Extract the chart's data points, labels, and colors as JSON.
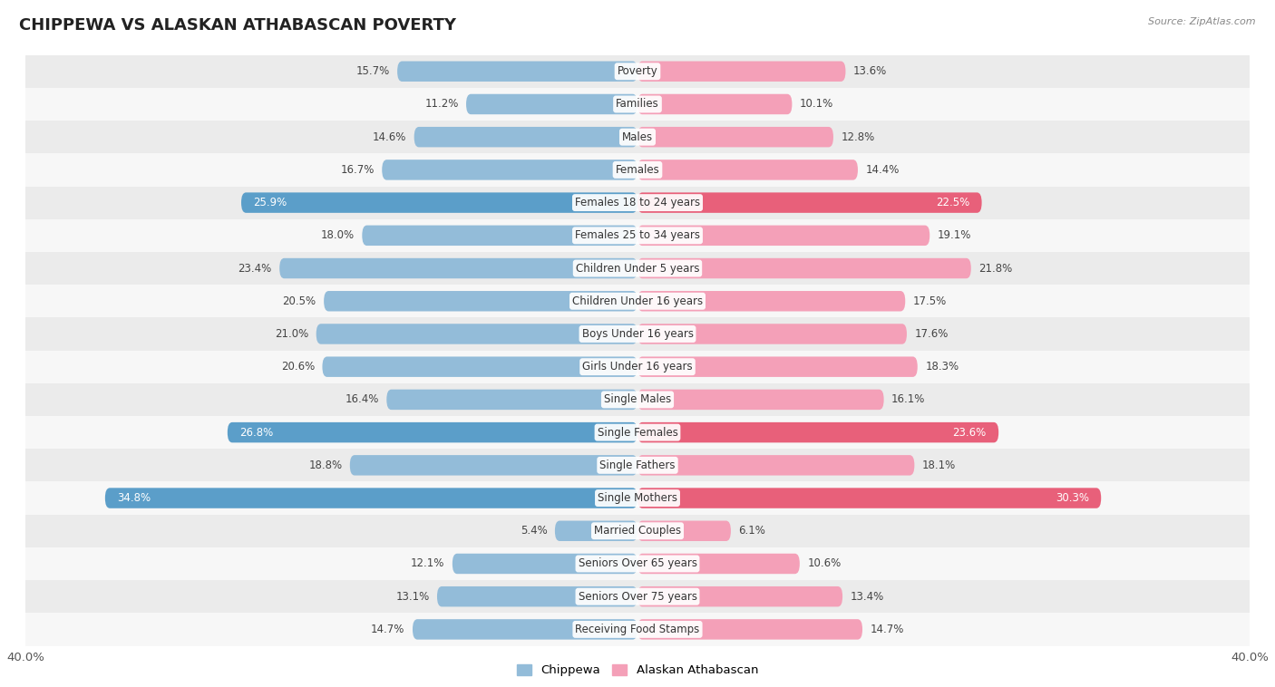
{
  "title": "CHIPPEWA VS ALASKAN ATHABASCAN POVERTY",
  "source": "Source: ZipAtlas.com",
  "categories": [
    "Poverty",
    "Families",
    "Males",
    "Females",
    "Females 18 to 24 years",
    "Females 25 to 34 years",
    "Children Under 5 years",
    "Children Under 16 years",
    "Boys Under 16 years",
    "Girls Under 16 years",
    "Single Males",
    "Single Females",
    "Single Fathers",
    "Single Mothers",
    "Married Couples",
    "Seniors Over 65 years",
    "Seniors Over 75 years",
    "Receiving Food Stamps"
  ],
  "chippewa_values": [
    15.7,
    11.2,
    14.6,
    16.7,
    25.9,
    18.0,
    23.4,
    20.5,
    21.0,
    20.6,
    16.4,
    26.8,
    18.8,
    34.8,
    5.4,
    12.1,
    13.1,
    14.7
  ],
  "alaskan_values": [
    13.6,
    10.1,
    12.8,
    14.4,
    22.5,
    19.1,
    21.8,
    17.5,
    17.6,
    18.3,
    16.1,
    23.6,
    18.1,
    30.3,
    6.1,
    10.6,
    13.4,
    14.7
  ],
  "chippewa_color": "#93bcd9",
  "alaskan_color": "#f4a0b8",
  "chippewa_highlight_indices": [
    4,
    11,
    13
  ],
  "alaskan_highlight_indices": [
    4,
    11,
    13
  ],
  "chippewa_highlight_color": "#5b9ec9",
  "alaskan_highlight_color": "#e8607a",
  "bar_height": 0.62,
  "xlim": 40.0,
  "bg_color": "#ffffff",
  "row_even_color": "#ebebeb",
  "row_odd_color": "#f7f7f7",
  "label_fontsize": 8.5,
  "cat_fontsize": 8.5,
  "title_fontsize": 13,
  "source_fontsize": 8,
  "legend_chippewa": "Chippewa",
  "legend_alaskan": "Alaskan Athabascan",
  "xaxis_label_left": "40.0%",
  "xaxis_label_right": "40.0%"
}
